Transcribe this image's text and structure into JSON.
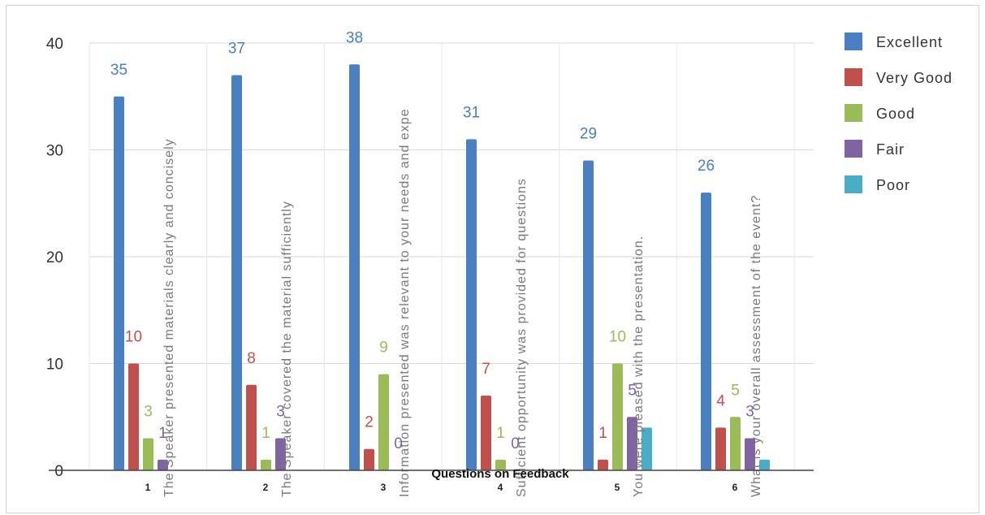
{
  "chart_data": {
    "type": "bar",
    "title": "",
    "xlabel": "Questions on Feedback",
    "ylabel": "",
    "ylim": [
      0,
      40
    ],
    "yticks": [
      0,
      10,
      20,
      30,
      40
    ],
    "grid": true,
    "legend_position": "right",
    "categories": [
      "1",
      "2",
      "3",
      "4",
      "5",
      "6"
    ],
    "question_labels": [
      "The Speaker presented materials clearly and concisely",
      "The Speaker covered the material sufficiently",
      "Information presented was relevant to your needs and expe",
      "Sufficient opportunity was provided for questions",
      "You were pleased with the presentation.",
      "What is your overall assessment of the event?"
    ],
    "series": [
      {
        "name": "Excellent",
        "color": "#4a7fc1",
        "values": [
          35,
          37,
          38,
          31,
          29,
          26
        ]
      },
      {
        "name": "Very Good",
        "color": "#c0504d",
        "values": [
          10,
          8,
          2,
          7,
          1,
          4
        ]
      },
      {
        "name": "Good",
        "color": "#9bbb59",
        "values": [
          3,
          1,
          9,
          1,
          10,
          5
        ]
      },
      {
        "name": "Fair",
        "color": "#8064a2",
        "values": [
          1,
          3,
          0,
          0,
          5,
          3
        ]
      },
      {
        "name": "Poor",
        "color": "#4bacc6",
        "values": [
          0,
          0,
          0,
          0,
          4,
          1
        ]
      }
    ],
    "data_labels": [
      {
        "series": 0,
        "cat": 0,
        "text": "35"
      },
      {
        "series": 1,
        "cat": 0,
        "text": "10"
      },
      {
        "series": 2,
        "cat": 0,
        "text": "3"
      },
      {
        "series": 3,
        "cat": 0,
        "text": "1"
      },
      {
        "series": 0,
        "cat": 1,
        "text": "37"
      },
      {
        "series": 1,
        "cat": 1,
        "text": "8"
      },
      {
        "series": 2,
        "cat": 1,
        "text": "1"
      },
      {
        "series": 3,
        "cat": 1,
        "text": "3"
      },
      {
        "series": 0,
        "cat": 2,
        "text": "38"
      },
      {
        "series": 1,
        "cat": 2,
        "text": "2"
      },
      {
        "series": 2,
        "cat": 2,
        "text": "9"
      },
      {
        "series": 3,
        "cat": 2,
        "text": "0"
      },
      {
        "series": 0,
        "cat": 3,
        "text": "31"
      },
      {
        "series": 1,
        "cat": 3,
        "text": "7"
      },
      {
        "series": 2,
        "cat": 3,
        "text": "1"
      },
      {
        "series": 3,
        "cat": 3,
        "text": "0"
      },
      {
        "series": 0,
        "cat": 4,
        "text": "29"
      },
      {
        "series": 1,
        "cat": 4,
        "text": "1"
      },
      {
        "series": 2,
        "cat": 4,
        "text": "10"
      },
      {
        "series": 3,
        "cat": 4,
        "text": "5"
      },
      {
        "series": 0,
        "cat": 5,
        "text": "26"
      },
      {
        "series": 1,
        "cat": 5,
        "text": "4"
      },
      {
        "series": 2,
        "cat": 5,
        "text": "5"
      },
      {
        "series": 3,
        "cat": 5,
        "text": "3"
      }
    ]
  }
}
